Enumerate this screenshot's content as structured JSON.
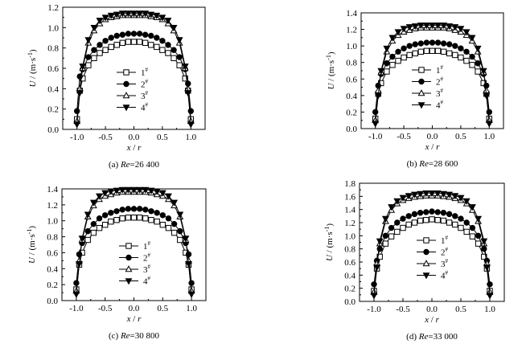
{
  "chart_data": [
    {
      "type": "line",
      "caption_prefix": "(a) ",
      "caption_var": "Re",
      "caption_value": "=26 400",
      "xlabel_var": "x",
      "xlabel_sep": " / ",
      "xlabel_den": "r",
      "ylabel_var": "U",
      "ylabel_unit": " / (m·s",
      "ylabel_exp": "-1",
      "ylabel_close": ")",
      "xlim": [
        -1.25,
        1.25
      ],
      "ylim": [
        0.0,
        1.2
      ],
      "xticks": [
        "-1.0",
        "-0.5",
        "0.0",
        "0.5",
        "1.0"
      ],
      "xtick_values": [
        -1.0,
        -0.5,
        0.0,
        0.5,
        1.0
      ],
      "yticks": [
        "0.0",
        "0.2",
        "0.4",
        "0.6",
        "0.8",
        "1.0",
        "1.2"
      ],
      "ytick_values": [
        0.0,
        0.2,
        0.4,
        0.6,
        0.8,
        1.0,
        1.2
      ],
      "x": [
        -1.0,
        -0.95,
        -0.9,
        -0.8,
        -0.7,
        -0.6,
        -0.5,
        -0.4,
        -0.3,
        -0.2,
        -0.1,
        0.0,
        0.1,
        0.2,
        0.3,
        0.4,
        0.5,
        0.6,
        0.7,
        0.8,
        0.9,
        0.95,
        1.0
      ],
      "series": [
        {
          "name": "1",
          "marker": "square-open",
          "values": [
            0.1,
            0.38,
            0.5,
            0.63,
            0.7,
            0.75,
            0.78,
            0.81,
            0.83,
            0.85,
            0.86,
            0.86,
            0.86,
            0.85,
            0.83,
            0.81,
            0.78,
            0.75,
            0.7,
            0.63,
            0.5,
            0.38,
            0.1
          ]
        },
        {
          "name": "2",
          "marker": "circle-filled",
          "values": [
            0.18,
            0.52,
            0.59,
            0.71,
            0.78,
            0.83,
            0.87,
            0.9,
            0.92,
            0.93,
            0.94,
            0.94,
            0.94,
            0.93,
            0.92,
            0.9,
            0.87,
            0.83,
            0.78,
            0.71,
            0.59,
            0.45,
            0.18
          ]
        },
        {
          "name": "3",
          "marker": "triangle-up-open",
          "values": [
            0.08,
            0.4,
            0.6,
            0.85,
            0.97,
            1.04,
            1.08,
            1.1,
            1.11,
            1.12,
            1.12,
            1.12,
            1.12,
            1.12,
            1.11,
            1.1,
            1.08,
            1.04,
            0.97,
            0.85,
            0.6,
            0.4,
            0.08
          ]
        },
        {
          "name": "4",
          "marker": "triangle-down-filled",
          "values": [
            0.05,
            0.36,
            0.62,
            0.88,
            1.0,
            1.07,
            1.1,
            1.12,
            1.13,
            1.14,
            1.14,
            1.14,
            1.14,
            1.14,
            1.13,
            1.12,
            1.1,
            1.07,
            1.0,
            0.88,
            0.62,
            0.36,
            0.05
          ]
        }
      ]
    },
    {
      "type": "line",
      "caption_prefix": "(b) ",
      "caption_var": "Re",
      "caption_value": "=28 600",
      "xlabel_var": "x",
      "xlabel_sep": " / ",
      "xlabel_den": "r",
      "ylabel_var": "U",
      "ylabel_unit": " / (m·s",
      "ylabel_exp": "-1",
      "ylabel_close": ")",
      "xlim": [
        -1.25,
        1.25
      ],
      "ylim": [
        0.0,
        1.4
      ],
      "xticks": [
        "-1.0",
        "-0.5",
        "0.0",
        "0.5",
        "1.0"
      ],
      "xtick_values": [
        -1.0,
        -0.5,
        0.0,
        0.5,
        1.0
      ],
      "yticks": [
        "0.0",
        "0.2",
        "0.4",
        "0.6",
        "0.8",
        "1.0",
        "1.2",
        "1.4"
      ],
      "ytick_values": [
        0.0,
        0.2,
        0.4,
        0.6,
        0.8,
        1.0,
        1.2,
        1.4
      ],
      "x": [
        -1.0,
        -0.95,
        -0.9,
        -0.8,
        -0.7,
        -0.6,
        -0.5,
        -0.4,
        -0.3,
        -0.2,
        -0.1,
        0.0,
        0.1,
        0.2,
        0.3,
        0.4,
        0.5,
        0.6,
        0.7,
        0.8,
        0.9,
        0.95,
        1.0
      ],
      "series": [
        {
          "name": "1",
          "marker": "square-open",
          "values": [
            0.12,
            0.42,
            0.55,
            0.69,
            0.77,
            0.82,
            0.86,
            0.89,
            0.91,
            0.93,
            0.94,
            0.94,
            0.94,
            0.93,
            0.91,
            0.89,
            0.86,
            0.82,
            0.77,
            0.69,
            0.55,
            0.42,
            0.12
          ]
        },
        {
          "name": "2",
          "marker": "circle-filled",
          "values": [
            0.2,
            0.52,
            0.66,
            0.79,
            0.87,
            0.93,
            0.97,
            1.0,
            1.02,
            1.03,
            1.04,
            1.04,
            1.04,
            1.03,
            1.02,
            1.0,
            0.97,
            0.93,
            0.87,
            0.79,
            0.66,
            0.52,
            0.2
          ]
        },
        {
          "name": "3",
          "marker": "triangle-up-open",
          "values": [
            0.1,
            0.46,
            0.68,
            0.93,
            1.06,
            1.13,
            1.17,
            1.19,
            1.21,
            1.22,
            1.22,
            1.22,
            1.22,
            1.22,
            1.21,
            1.19,
            1.17,
            1.13,
            1.06,
            0.93,
            0.68,
            0.46,
            0.1
          ]
        },
        {
          "name": "4",
          "marker": "triangle-down-filled",
          "values": [
            0.06,
            0.4,
            0.7,
            0.97,
            1.1,
            1.17,
            1.21,
            1.23,
            1.24,
            1.25,
            1.25,
            1.25,
            1.25,
            1.25,
            1.24,
            1.23,
            1.21,
            1.17,
            1.1,
            0.97,
            0.7,
            0.4,
            0.06
          ]
        }
      ]
    },
    {
      "type": "line",
      "caption_prefix": "(c) ",
      "caption_var": "Re",
      "caption_value": "=30 800",
      "xlabel_var": "x",
      "xlabel_sep": " / ",
      "xlabel_den": "r",
      "ylabel_var": "U",
      "ylabel_unit": " / (m·s",
      "ylabel_exp": "-1",
      "ylabel_close": ")",
      "xlim": [
        -1.25,
        1.25
      ],
      "ylim": [
        0.0,
        1.4
      ],
      "xticks": [
        "-1.0",
        "-0.5",
        "0.0",
        "0.5",
        "1.0"
      ],
      "xtick_values": [
        -1.0,
        -0.5,
        0.0,
        0.5,
        1.0
      ],
      "yticks": [
        "0.0",
        "0.2",
        "0.4",
        "0.6",
        "0.8",
        "1.0",
        "1.2",
        "1.4"
      ],
      "ytick_values": [
        0.0,
        0.2,
        0.4,
        0.6,
        0.8,
        1.0,
        1.2,
        1.4
      ],
      "x": [
        -1.0,
        -0.95,
        -0.9,
        -0.8,
        -0.7,
        -0.6,
        -0.5,
        -0.4,
        -0.3,
        -0.2,
        -0.1,
        0.0,
        0.1,
        0.2,
        0.3,
        0.4,
        0.5,
        0.6,
        0.7,
        0.8,
        0.9,
        0.95,
        1.0
      ],
      "series": [
        {
          "name": "1",
          "marker": "square-open",
          "values": [
            0.14,
            0.45,
            0.6,
            0.76,
            0.85,
            0.91,
            0.95,
            0.99,
            1.01,
            1.03,
            1.04,
            1.04,
            1.04,
            1.03,
            1.01,
            0.99,
            0.95,
            0.91,
            0.85,
            0.76,
            0.6,
            0.45,
            0.14
          ]
        },
        {
          "name": "2",
          "marker": "circle-filled",
          "values": [
            0.22,
            0.58,
            0.72,
            0.87,
            0.96,
            1.03,
            1.07,
            1.1,
            1.12,
            1.14,
            1.15,
            1.15,
            1.15,
            1.14,
            1.12,
            1.1,
            1.07,
            1.03,
            0.96,
            0.87,
            0.72,
            0.58,
            0.22
          ]
        },
        {
          "name": "3",
          "marker": "triangle-up-open",
          "values": [
            0.12,
            0.5,
            0.76,
            1.05,
            1.19,
            1.27,
            1.31,
            1.33,
            1.35,
            1.36,
            1.36,
            1.36,
            1.36,
            1.36,
            1.35,
            1.33,
            1.31,
            1.27,
            1.19,
            1.05,
            0.76,
            0.5,
            0.12
          ]
        },
        {
          "name": "4",
          "marker": "triangle-down-filled",
          "values": [
            0.08,
            0.46,
            0.78,
            1.08,
            1.23,
            1.31,
            1.35,
            1.37,
            1.38,
            1.39,
            1.39,
            1.39,
            1.39,
            1.39,
            1.38,
            1.37,
            1.35,
            1.31,
            1.23,
            1.08,
            0.78,
            0.46,
            0.08
          ]
        }
      ]
    },
    {
      "type": "line",
      "caption_prefix": "(d) ",
      "caption_var": "Re",
      "caption_value": "=33 000",
      "xlabel_var": "x",
      "xlabel_sep": " / ",
      "xlabel_den": "r",
      "ylabel_var": "U",
      "ylabel_unit": " / (m·s",
      "ylabel_exp": "-1",
      "ylabel_close": ")",
      "xlim": [
        -1.25,
        1.25
      ],
      "ylim": [
        0.0,
        1.8
      ],
      "xticks": [
        "-1.0",
        "-0.5",
        "0.0",
        "0.5",
        "1.0"
      ],
      "xtick_values": [
        -1.0,
        -0.5,
        0.0,
        0.5,
        1.0
      ],
      "yticks": [
        "0.0",
        "0.2",
        "0.4",
        "0.6",
        "0.8",
        "1.0",
        "1.2",
        "1.4",
        "1.6",
        "1.8"
      ],
      "ytick_values": [
        0.0,
        0.2,
        0.4,
        0.6,
        0.8,
        1.0,
        1.2,
        1.4,
        1.6,
        1.8
      ],
      "x": [
        -1.0,
        -0.95,
        -0.9,
        -0.8,
        -0.7,
        -0.6,
        -0.5,
        -0.4,
        -0.3,
        -0.2,
        -0.1,
        0.0,
        0.1,
        0.2,
        0.3,
        0.4,
        0.5,
        0.6,
        0.7,
        0.8,
        0.9,
        0.95,
        1.0
      ],
      "series": [
        {
          "name": "1",
          "marker": "square-open",
          "values": [
            0.16,
            0.5,
            0.68,
            0.88,
            0.99,
            1.06,
            1.12,
            1.17,
            1.2,
            1.23,
            1.24,
            1.25,
            1.24,
            1.23,
            1.2,
            1.17,
            1.12,
            1.06,
            0.99,
            0.88,
            0.68,
            0.5,
            0.16
          ]
        },
        {
          "name": "2",
          "marker": "circle-filled",
          "values": [
            0.26,
            0.62,
            0.8,
            1.0,
            1.12,
            1.2,
            1.26,
            1.3,
            1.33,
            1.35,
            1.36,
            1.37,
            1.36,
            1.35,
            1.33,
            1.3,
            1.26,
            1.2,
            1.12,
            1.0,
            0.8,
            0.62,
            0.26
          ]
        },
        {
          "name": "3",
          "marker": "triangle-up-open",
          "values": [
            0.14,
            0.58,
            0.88,
            1.22,
            1.39,
            1.49,
            1.54,
            1.57,
            1.59,
            1.6,
            1.61,
            1.61,
            1.61,
            1.6,
            1.59,
            1.57,
            1.54,
            1.49,
            1.39,
            1.22,
            0.88,
            0.58,
            0.14
          ]
        },
        {
          "name": "4",
          "marker": "triangle-down-filled",
          "values": [
            0.09,
            0.52,
            0.92,
            1.26,
            1.44,
            1.53,
            1.58,
            1.61,
            1.63,
            1.64,
            1.65,
            1.65,
            1.65,
            1.64,
            1.63,
            1.61,
            1.58,
            1.53,
            1.44,
            1.26,
            0.92,
            0.52,
            0.09
          ]
        }
      ]
    }
  ],
  "legend_sup": "#"
}
